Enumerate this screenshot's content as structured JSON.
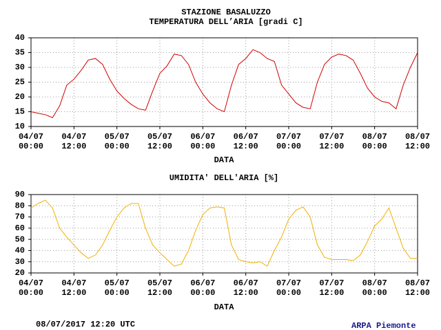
{
  "chart_data": [
    {
      "type": "line",
      "title": "STAZIONE BASALUZZO",
      "subtitle": "TEMPERATURA DELL’ARIA [gradi C]",
      "xlabel": "DATA",
      "color": "#d00000",
      "grid": true,
      "x": [
        "04/07 00:00",
        "04/07 02:00",
        "04/07 04:00",
        "04/07 06:00",
        "04/07 08:00",
        "04/07 10:00",
        "04/07 12:00",
        "04/07 14:00",
        "04/07 16:00",
        "04/07 18:00",
        "04/07 20:00",
        "04/07 22:00",
        "05/07 00:00",
        "05/07 02:00",
        "05/07 04:00",
        "05/07 06:00",
        "05/07 08:00",
        "05/07 10:00",
        "05/07 12:00",
        "05/07 14:00",
        "05/07 16:00",
        "05/07 18:00",
        "05/07 20:00",
        "05/07 22:00",
        "06/07 00:00",
        "06/07 02:00",
        "06/07 04:00",
        "06/07 06:00",
        "06/07 08:00",
        "06/07 10:00",
        "06/07 12:00",
        "06/07 14:00",
        "06/07 16:00",
        "06/07 18:00",
        "06/07 20:00",
        "06/07 22:00",
        "07/07 00:00",
        "07/07 02:00",
        "07/07 04:00",
        "07/07 06:00",
        "07/07 08:00",
        "07/07 10:00",
        "07/07 12:00",
        "07/07 14:00",
        "07/07 16:00",
        "07/07 18:00",
        "07/07 20:00",
        "07/07 22:00",
        "08/07 00:00",
        "08/07 02:00",
        "08/07 04:00",
        "08/07 06:00",
        "08/07 08:00",
        "08/07 10:00",
        "08/07 12:00"
      ],
      "values": [
        15,
        14.5,
        14,
        13,
        17,
        24,
        26,
        29,
        32.5,
        33,
        31,
        26,
        22,
        19.5,
        17.5,
        16,
        15.5,
        22,
        28,
        30.5,
        34.5,
        34,
        31,
        25,
        21,
        18,
        16,
        15,
        24,
        31,
        33,
        36,
        35,
        33,
        32,
        24,
        21,
        18,
        16.5,
        16,
        25,
        31,
        33.5,
        34.5,
        34,
        32.5,
        28,
        23,
        20,
        18.5,
        18,
        16,
        24,
        30,
        35
      ],
      "xlim": [
        "04/07 00:00",
        "08/07 12:00"
      ],
      "xticks": [
        "04/07 00:00",
        "04/07 12:00",
        "05/07 00:00",
        "05/07 12:00",
        "06/07 00:00",
        "06/07 12:00",
        "07/07 00:00",
        "07/07 12:00",
        "08/07 00:00",
        "08/07 12:00"
      ],
      "ylim": [
        10,
        40
      ],
      "yticks": [
        10,
        15,
        20,
        25,
        30,
        35,
        40
      ]
    },
    {
      "type": "line",
      "title": "UMIDITA' DELL'ARIA [%]",
      "xlabel": "DATA",
      "color": "#f0b000",
      "grid": true,
      "x": [
        "04/07 00:00",
        "04/07 02:00",
        "04/07 04:00",
        "04/07 06:00",
        "04/07 08:00",
        "04/07 10:00",
        "04/07 12:00",
        "04/07 14:00",
        "04/07 16:00",
        "04/07 18:00",
        "04/07 20:00",
        "04/07 22:00",
        "05/07 00:00",
        "05/07 02:00",
        "05/07 04:00",
        "05/07 06:00",
        "05/07 08:00",
        "05/07 10:00",
        "05/07 12:00",
        "05/07 14:00",
        "05/07 16:00",
        "05/07 18:00",
        "05/07 20:00",
        "05/07 22:00",
        "06/07 00:00",
        "06/07 02:00",
        "06/07 04:00",
        "06/07 06:00",
        "06/07 08:00",
        "06/07 10:00",
        "06/07 12:00",
        "06/07 14:00",
        "06/07 16:00",
        "06/07 18:00",
        "06/07 20:00",
        "06/07 22:00",
        "07/07 00:00",
        "07/07 02:00",
        "07/07 04:00",
        "07/07 06:00",
        "07/07 08:00",
        "07/07 10:00",
        "07/07 12:00",
        "07/07 14:00",
        "07/07 16:00",
        "07/07 18:00",
        "07/07 20:00",
        "07/07 22:00",
        "08/07 00:00",
        "08/07 02:00",
        "08/07 04:00",
        "08/07 06:00",
        "08/07 08:00",
        "08/07 10:00",
        "08/07 12:00"
      ],
      "values": [
        78,
        82,
        85,
        78,
        60,
        52,
        45,
        38,
        33,
        36,
        45,
        58,
        70,
        78,
        82,
        82,
        60,
        45,
        38,
        32,
        26,
        28,
        40,
        58,
        72,
        78,
        79,
        78,
        45,
        32,
        30,
        29,
        30,
        26,
        40,
        52,
        68,
        76,
        79,
        70,
        45,
        34,
        32,
        32,
        32,
        31,
        36,
        48,
        62,
        68,
        78,
        60,
        42,
        33,
        33
      ],
      "xlim": [
        "04/07 00:00",
        "08/07 12:00"
      ],
      "xticks": [
        "04/07 00:00",
        "04/07 12:00",
        "05/07 00:00",
        "05/07 12:00",
        "06/07 00:00",
        "06/07 12:00",
        "07/07 00:00",
        "07/07 12:00",
        "08/07 00:00",
        "08/07 12:00"
      ],
      "ylim": [
        20,
        90
      ],
      "yticks": [
        20,
        30,
        40,
        50,
        60,
        70,
        80,
        90
      ]
    }
  ],
  "footer": {
    "timestamp": "08/07/2017 12:20 UTC",
    "credit": "ARPA Piemonte"
  }
}
